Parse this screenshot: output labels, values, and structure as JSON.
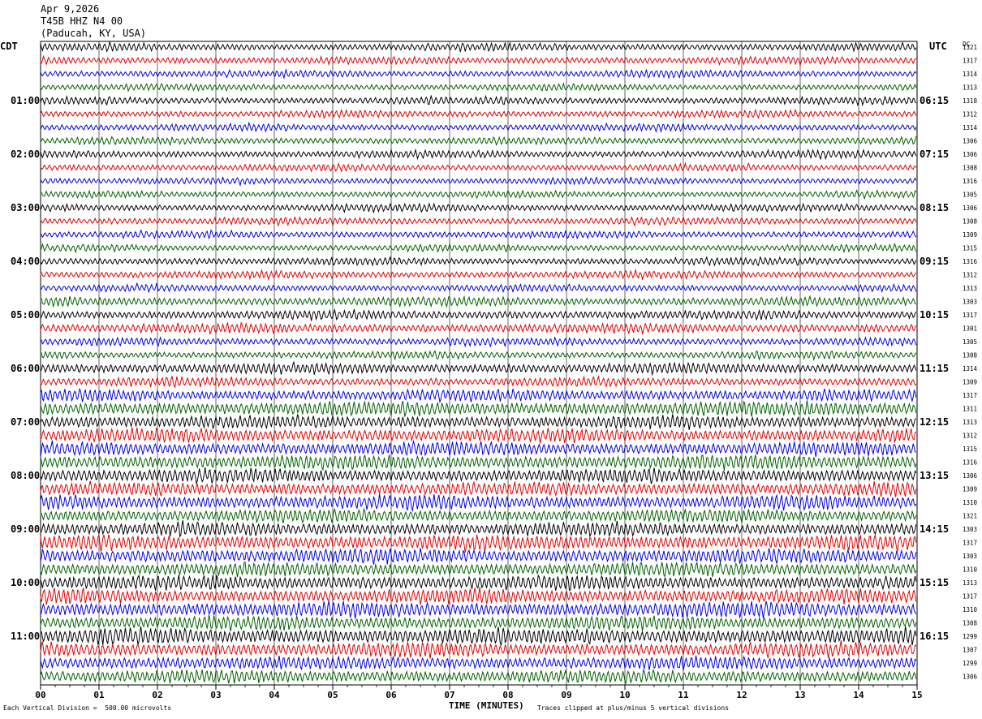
{
  "header": {
    "date": "Apr 9,2026",
    "station": "T45B HHZ N4 00",
    "location": "(Paducah, KY, USA)"
  },
  "left_axis_title": "CDT",
  "right_axis_title": "UTC",
  "dc_label": "DC",
  "footer": {
    "scale_note": "Each Vertical Division =  500.00 microvolts",
    "clip_note": "Traces clipped at plus/minus 5 vertical divisions"
  },
  "chart_data": {
    "type": "line",
    "title": "",
    "xlabel": "TIME (MINUTES)",
    "xlim": [
      0,
      15
    ],
    "x_ticks": [
      "00",
      "01",
      "02",
      "03",
      "04",
      "05",
      "06",
      "07",
      "08",
      "09",
      "10",
      "11",
      "12",
      "13",
      "14",
      "15"
    ],
    "grid": true,
    "trace_colors": [
      "#000000",
      "#e00000",
      "#0000e0",
      "#006000"
    ],
    "left_time_labels": [
      {
        "row": 4,
        "label": "01:00"
      },
      {
        "row": 8,
        "label": "02:00"
      },
      {
        "row": 12,
        "label": "03:00"
      },
      {
        "row": 16,
        "label": "04:00"
      },
      {
        "row": 20,
        "label": "05:00"
      },
      {
        "row": 24,
        "label": "06:00"
      },
      {
        "row": 28,
        "label": "07:00"
      },
      {
        "row": 32,
        "label": "08:00"
      },
      {
        "row": 36,
        "label": "09:00"
      },
      {
        "row": 40,
        "label": "10:00"
      },
      {
        "row": 44,
        "label": "11:00"
      }
    ],
    "right_time_labels": [
      {
        "row": 4,
        "label": "06:15"
      },
      {
        "row": 8,
        "label": "07:15"
      },
      {
        "row": 12,
        "label": "08:15"
      },
      {
        "row": 16,
        "label": "09:15"
      },
      {
        "row": 20,
        "label": "10:15"
      },
      {
        "row": 24,
        "label": "11:15"
      },
      {
        "row": 28,
        "label": "12:15"
      },
      {
        "row": 32,
        "label": "13:15"
      },
      {
        "row": 36,
        "label": "14:15"
      },
      {
        "row": 40,
        "label": "15:15"
      },
      {
        "row": 44,
        "label": "16:15"
      }
    ],
    "dc_offsets": [
      "1321",
      "1317",
      "1314",
      "1313",
      "1318",
      "1312",
      "1314",
      "1306",
      "1306",
      "1308",
      "1316",
      "1305",
      "1306",
      "1308",
      "1309",
      "1315",
      "1316",
      "1312",
      "1313",
      "1303",
      "1317",
      "1301",
      "1305",
      "1308",
      "1314",
      "1309",
      "1317",
      "1311",
      "1313",
      "1312",
      "1315",
      "1316",
      "1306",
      "1309",
      "1310",
      "1321",
      "1303",
      "1317",
      "1303",
      "1310",
      "1313",
      "1317",
      "1310",
      "1308",
      "1299",
      "1307",
      "1299",
      "1306"
    ],
    "trace_activity": [
      1.0,
      1.0,
      0.95,
      0.9,
      1.0,
      0.95,
      0.95,
      0.95,
      1.0,
      0.95,
      0.9,
      0.9,
      1.0,
      1.0,
      0.95,
      0.9,
      1.0,
      1.0,
      0.95,
      1.2,
      1.2,
      1.3,
      1.05,
      1.0,
      1.4,
      1.2,
      1.5,
      1.9,
      1.7,
      1.8,
      1.8,
      1.9,
      1.8,
      1.8,
      1.9,
      1.7,
      1.8,
      2.0,
      1.9,
      1.8,
      1.9,
      1.9,
      2.0,
      1.8,
      2.1,
      1.9,
      1.8,
      1.7
    ]
  }
}
